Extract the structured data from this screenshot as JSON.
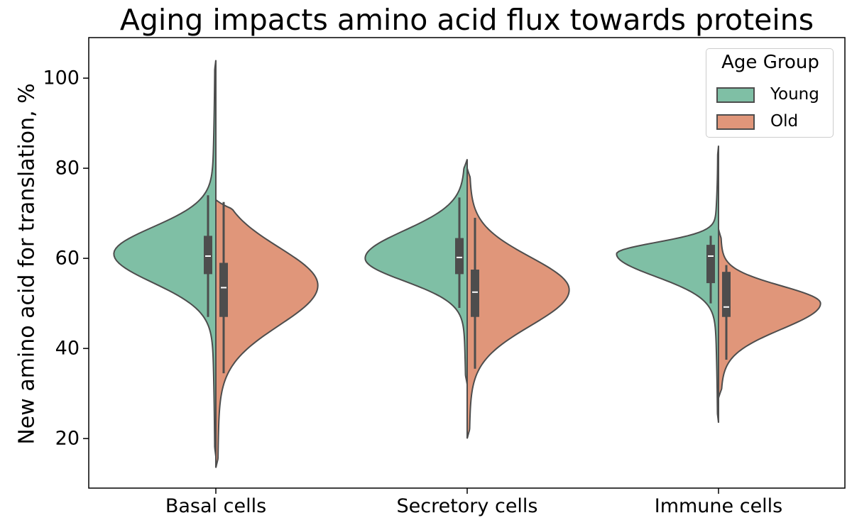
{
  "chart_data": {
    "type": "violin",
    "title": "Aging impacts amino acid flux towards proteins",
    "ylabel": "New amino acid for translation, %",
    "xlabel": "",
    "ylim": [
      9,
      109
    ],
    "yticks": [
      20,
      40,
      60,
      80,
      100
    ],
    "categories": [
      "Basal cells",
      "Secretory cells",
      "Immune cells"
    ],
    "legend": {
      "title": "Age Group",
      "position": "top-right"
    },
    "series": [
      {
        "name": "Young",
        "color": "#7fbfa5",
        "side": "left",
        "groups": [
          {
            "category": "Basal cells",
            "min": 16,
            "max": 104,
            "q1": 56.5,
            "median": 60.5,
            "q3": 65,
            "whisker_low": 47,
            "whisker_high": 74,
            "mode": 61
          },
          {
            "category": "Secretory cells",
            "min": 32,
            "max": 82,
            "q1": 56.5,
            "median": 60.2,
            "q3": 64.5,
            "whisker_low": 49,
            "whisker_high": 73.5,
            "mode": 60
          },
          {
            "category": "Immune cells",
            "min": 23.5,
            "max": 85,
            "q1": 54.5,
            "median": 60.5,
            "q3": 63,
            "whisker_low": 50,
            "whisker_high": 65,
            "mode": 61
          }
        ]
      },
      {
        "name": "Old",
        "color": "#e0967a",
        "side": "right",
        "groups": [
          {
            "category": "Basal cells",
            "min": 13.5,
            "max": 73,
            "q1": 47,
            "median": 53.5,
            "q3": 59,
            "whisker_low": 34.5,
            "whisker_high": 72.5,
            "mode": 54
          },
          {
            "category": "Secretory cells",
            "min": 20,
            "max": 80,
            "q1": 47,
            "median": 52.5,
            "q3": 57.5,
            "whisker_low": 35.5,
            "whisker_high": 69,
            "mode": 53
          },
          {
            "category": "Immune cells",
            "min": 29,
            "max": 66.5,
            "q1": 47,
            "median": 49.2,
            "q3": 57,
            "whisker_low": 37.5,
            "whisker_high": 58.5,
            "mode": 50
          }
        ]
      }
    ],
    "grid": false
  }
}
